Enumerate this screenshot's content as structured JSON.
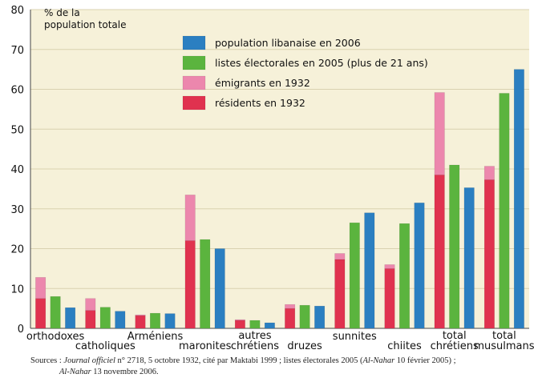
{
  "chart_data": {
    "type": "bar",
    "ylabel_line1": "% de la",
    "ylabel_line2": "population totale",
    "ylim": [
      0,
      80
    ],
    "yticks": [
      0,
      10,
      20,
      30,
      40,
      50,
      60,
      70,
      80
    ],
    "grid": true,
    "legend_position": "top-center",
    "categories": [
      [
        "orthodoxes"
      ],
      [
        "catholiques"
      ],
      [
        "Arméniens"
      ],
      [
        "maronites"
      ],
      [
        "autres",
        "chrétiens"
      ],
      [
        "druzes"
      ],
      [
        "sunnites"
      ],
      [
        "chiites"
      ],
      [
        "total",
        "chrétiens"
      ],
      [
        "total",
        "musulmans"
      ]
    ],
    "series": [
      {
        "name": "résidents en 1932",
        "color": "#e0324f",
        "values": [
          7.5,
          4.5,
          3.2,
          22,
          2.0,
          5.0,
          17.3,
          15.0,
          38.5,
          37.3
        ]
      },
      {
        "name": "émigrants en 1932",
        "color": "#ec87ad",
        "values": [
          5.3,
          3.0,
          0.2,
          11.5,
          0.2,
          1.0,
          1.5,
          1.0,
          20.7,
          3.4
        ]
      },
      {
        "name": "listes électorales en 2005 (plus de 21 ans)",
        "color": "#5bb43e",
        "values": [
          8.0,
          5.3,
          3.8,
          22.3,
          2.0,
          5.8,
          26.5,
          26.3,
          41.0,
          59.0
        ]
      },
      {
        "name": "population libanaise en 2006",
        "color": "#2b7fc1",
        "values": [
          5.2,
          4.3,
          3.7,
          20.0,
          1.4,
          5.6,
          29.0,
          31.5,
          35.3,
          65.0
        ]
      }
    ],
    "legend_order": [
      3,
      2,
      1,
      0
    ],
    "label_rows": [
      0,
      1,
      0,
      1,
      1,
      1,
      0,
      1,
      1,
      1
    ]
  },
  "sources": {
    "line1_a": "Sources : ",
    "line1_b": "Journal officiel",
    "line1_c": " n° 2718, 5 octobre 1932, cité par Maktabi 1999 ; listes électorales 2005 (",
    "line1_d": "Al-Nahar",
    "line1_e": " 10 février 2005) ;",
    "line2_a": "Al-Nahar",
    "line2_b": " 13 novembre 2006."
  }
}
